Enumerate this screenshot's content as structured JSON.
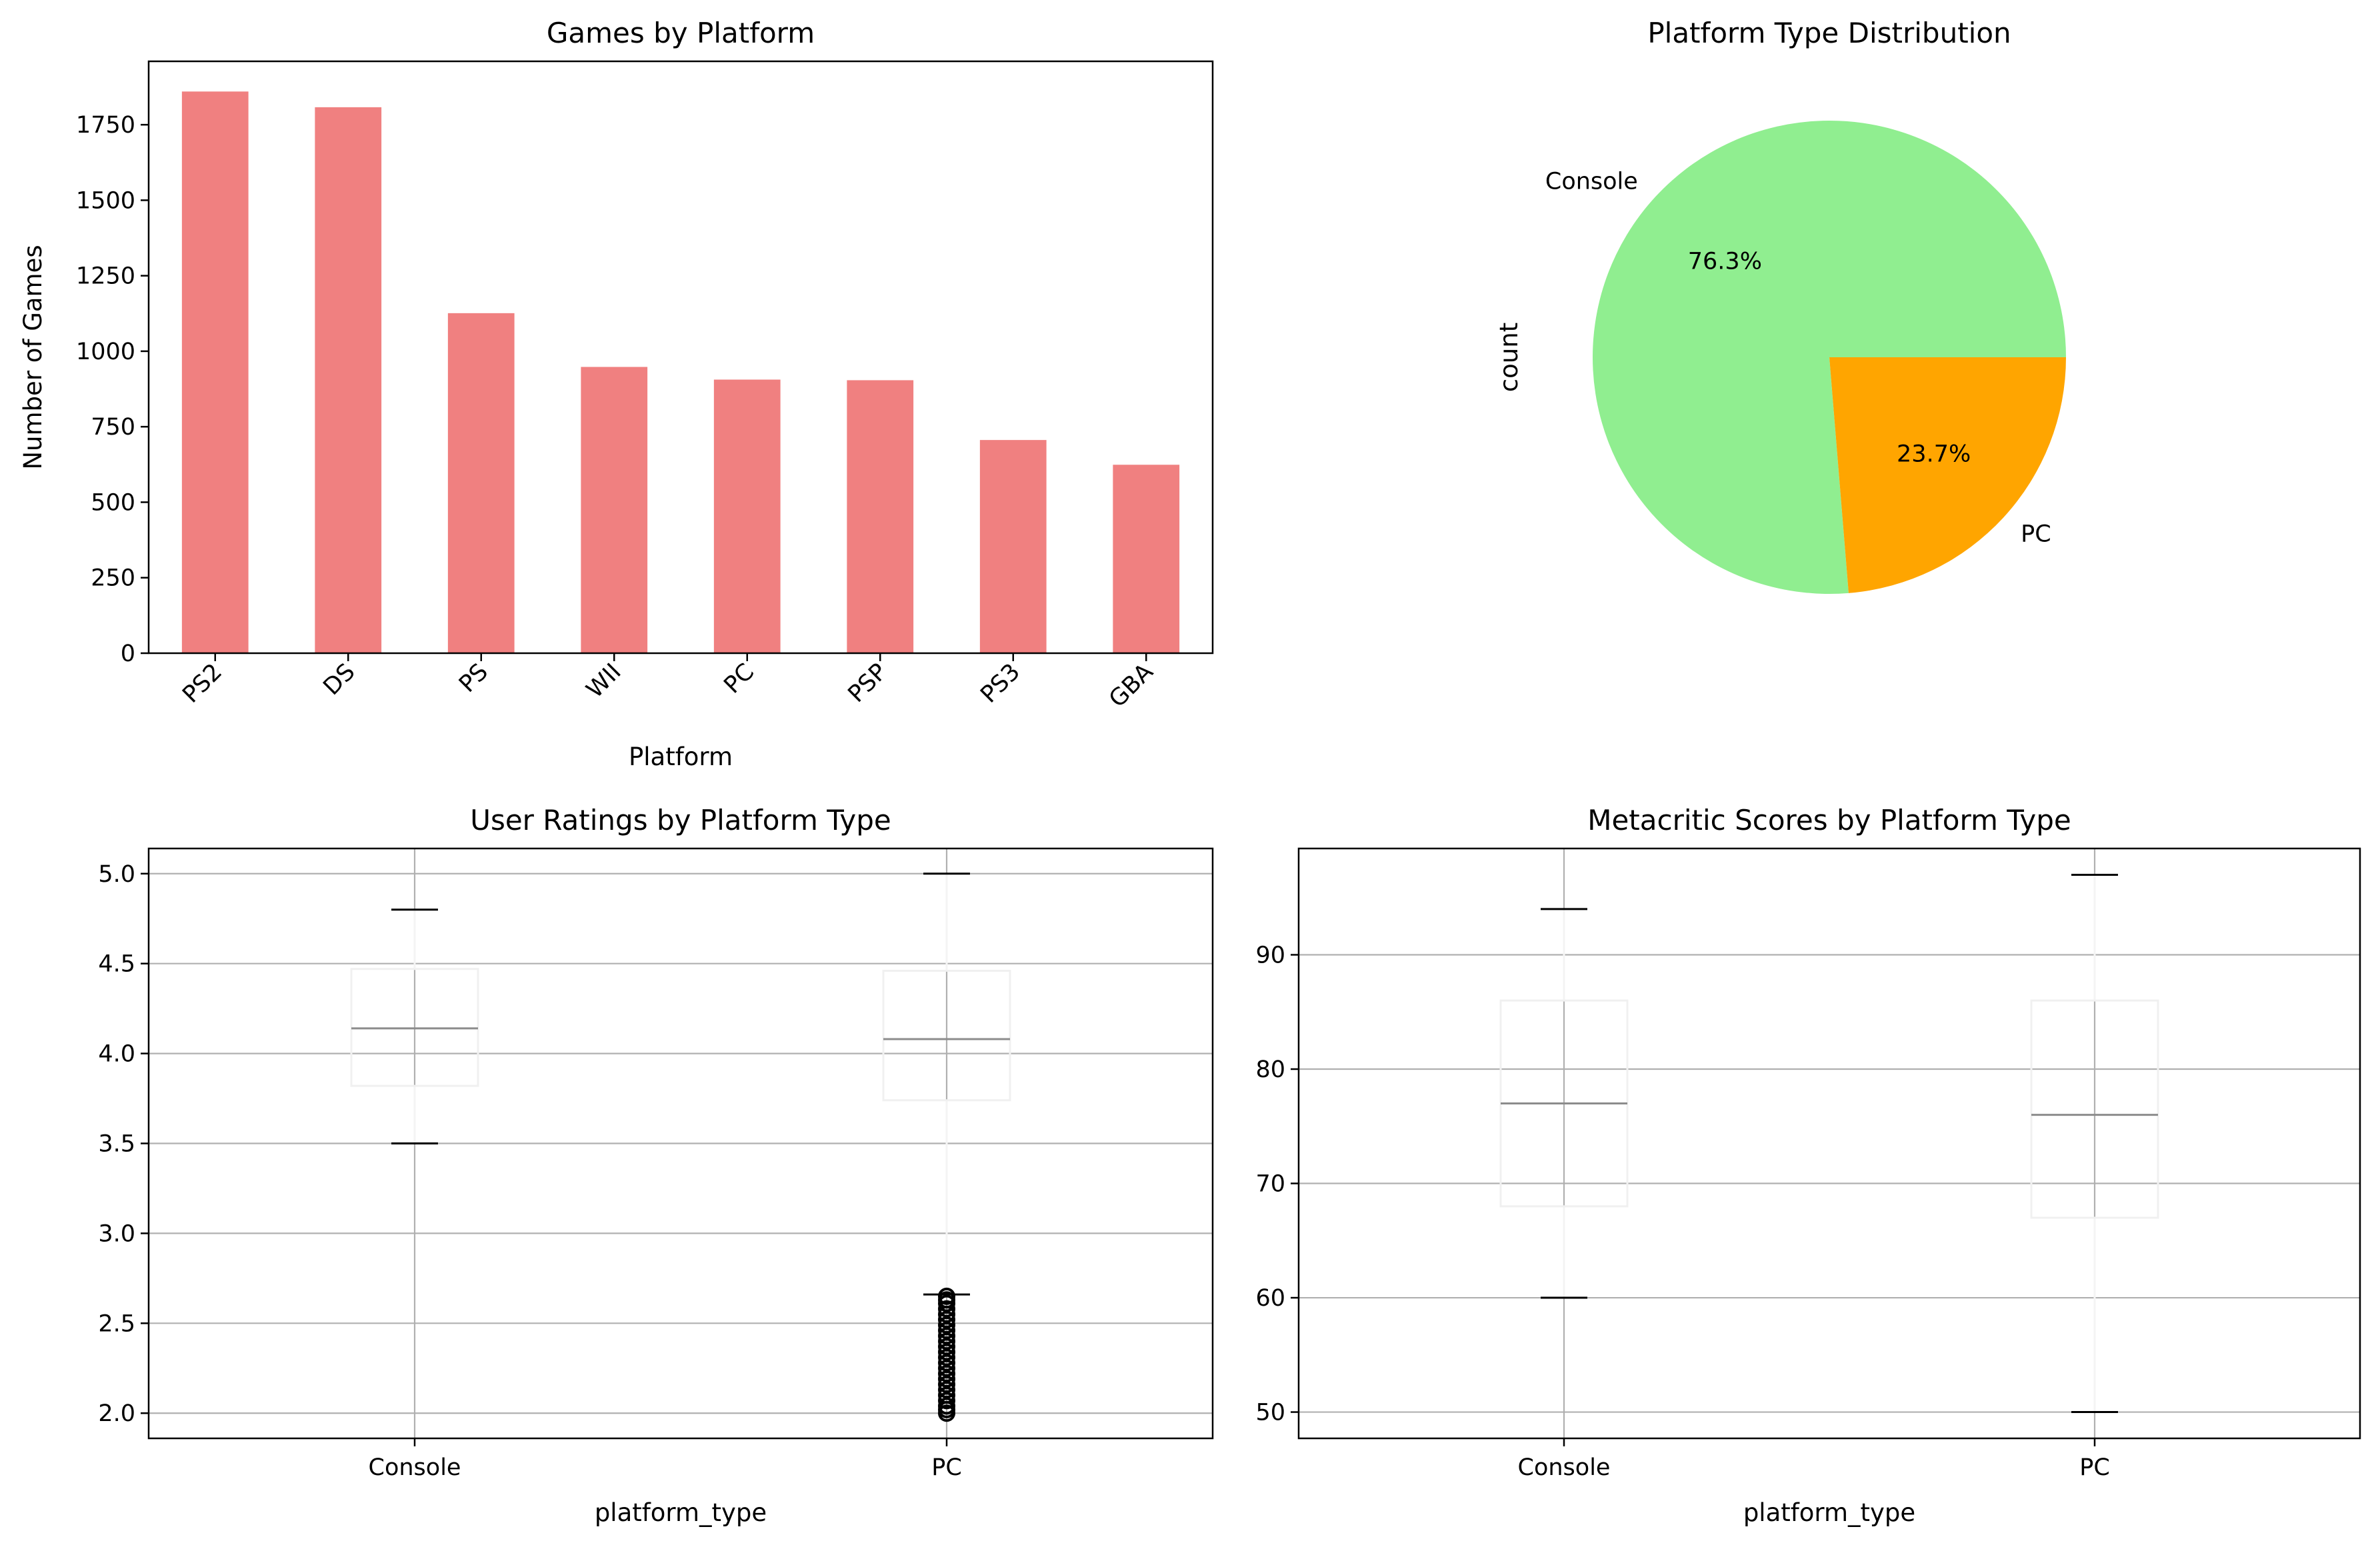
{
  "chart_data": [
    {
      "type": "bar",
      "title": "Games by Platform",
      "xlabel": "Platform",
      "ylabel": "Number of Games",
      "categories": [
        "PS2",
        "DS",
        "PS",
        "WII",
        "PC",
        "PSP",
        "PS3",
        "GBA"
      ],
      "values": [
        1860,
        1808,
        1126,
        948,
        906,
        904,
        706,
        624
      ],
      "ylim": [
        0,
        1960
      ],
      "yticks": [
        0,
        250,
        500,
        750,
        1000,
        1250,
        1500,
        1750
      ],
      "color": "#f08080",
      "grid": false
    },
    {
      "type": "pie",
      "title": "Platform Type Distribution",
      "ylabel": "count",
      "labels": [
        "Console",
        "PC"
      ],
      "values": [
        76.3,
        23.7
      ],
      "value_labels": [
        "76.3%",
        "23.7%"
      ],
      "colors": [
        "#90ee90",
        "#ffa500"
      ]
    },
    {
      "type": "box",
      "title": "User Ratings by Platform Type",
      "xlabel": "platform_type",
      "categories": [
        "Console",
        "PC"
      ],
      "ylim": [
        1.86,
        5.14
      ],
      "yticks": [
        2.0,
        2.5,
        3.0,
        3.5,
        4.0,
        4.5,
        5.0
      ],
      "boxes": [
        {
          "name": "Console",
          "whislo": 3.5,
          "q1": 3.82,
          "med": 4.14,
          "q3": 4.47,
          "whishi": 4.8,
          "fliers": []
        },
        {
          "name": "PC",
          "whislo": 2.66,
          "q1": 3.74,
          "med": 4.08,
          "q3": 4.46,
          "whishi": 5.0,
          "fliers": [
            2.0,
            2.02,
            2.04,
            2.07,
            2.1,
            2.13,
            2.16,
            2.19,
            2.22,
            2.25,
            2.28,
            2.31,
            2.34,
            2.37,
            2.4,
            2.43,
            2.46,
            2.49,
            2.52,
            2.55,
            2.58,
            2.61,
            2.63,
            2.65
          ]
        }
      ],
      "grid": true
    },
    {
      "type": "box",
      "title": "Metacritic Scores by Platform Type",
      "xlabel": "platform_type",
      "categories": [
        "Console",
        "PC"
      ],
      "ylim": [
        47.7,
        99.3
      ],
      "yticks": [
        50,
        60,
        70,
        80,
        90
      ],
      "boxes": [
        {
          "name": "Console",
          "whislo": 60,
          "q1": 68,
          "med": 77,
          "q3": 86,
          "whishi": 94,
          "fliers": []
        },
        {
          "name": "PC",
          "whislo": 50,
          "q1": 67,
          "med": 76,
          "q3": 86,
          "whishi": 97,
          "fliers": []
        }
      ],
      "grid": true
    }
  ]
}
